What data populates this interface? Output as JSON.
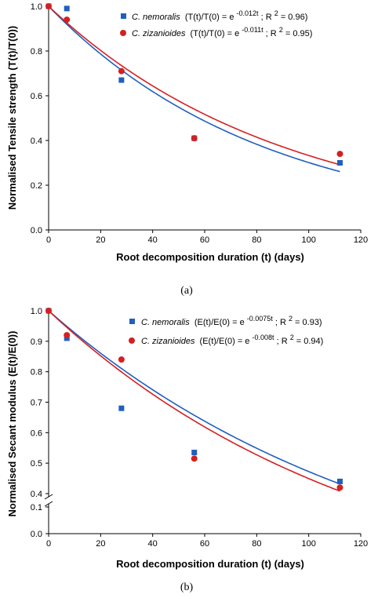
{
  "chart_data": [
    {
      "type": "scatter",
      "panel_label": "(a)",
      "xlabel": "Root decomposition duration (t) (days)",
      "ylabel": "Normalised Tensile strength (T(t)/T(0))",
      "xlim": [
        0,
        120
      ],
      "ylim": [
        0,
        1.0
      ],
      "xticks": [
        "0",
        "20",
        "40",
        "60",
        "80",
        "100",
        "120"
      ],
      "yticks": [
        "0.0",
        "0.2",
        "0.4",
        "0.6",
        "0.8",
        "1.0"
      ],
      "legend_position": "top-right",
      "series": [
        {
          "name": "C. nemoralis",
          "legend_rest": "(T(t)/T(0) = e",
          "legend_exp": "-0.012t",
          "legend_tail": "; R",
          "legend_tail2": " = 0.96)",
          "marker": "square",
          "color": "#1f5fbf",
          "x": [
            0,
            7,
            28,
            56,
            112
          ],
          "y": [
            1.0,
            0.99,
            0.67,
            0.41,
            0.3
          ],
          "fit_k": 0.012
        },
        {
          "name": "C. zizanioides",
          "legend_rest": "(T(t)/T(0) = e",
          "legend_exp": "-0.011t",
          "legend_tail": "; R",
          "legend_tail2": " = 0.95)",
          "marker": "circle",
          "color": "#d42020",
          "x": [
            0,
            7,
            28,
            56,
            112
          ],
          "y": [
            1.0,
            0.94,
            0.71,
            0.41,
            0.34
          ],
          "fit_k": 0.011
        }
      ]
    },
    {
      "type": "scatter",
      "panel_label": "(b)",
      "xlabel": "Root decomposition duration (t) (days)",
      "ylabel": "Normalised Secant modulus (E(t)/E(0))",
      "xlim": [
        0,
        120
      ],
      "ylim": [
        0,
        1.0
      ],
      "axis_break": "between 0.1 and 0.4",
      "xticks": [
        "0",
        "20",
        "40",
        "60",
        "80",
        "100",
        "120"
      ],
      "yticks": [
        "0.0",
        "0.1",
        "0.4",
        "0.5",
        "0.6",
        "0.7",
        "0.8",
        "0.9",
        "1.0"
      ],
      "legend_position": "top-right",
      "series": [
        {
          "name": "C. nemoralis",
          "legend_rest": "(E(t)/E(0) = e",
          "legend_exp": "-0.0075t",
          "legend_tail": "; R",
          "legend_tail2": " = 0.93)",
          "marker": "square",
          "color": "#1f5fbf",
          "x": [
            0,
            7,
            28,
            56,
            112
          ],
          "y": [
            1.0,
            0.91,
            0.68,
            0.535,
            0.44
          ],
          "fit_k": 0.0075
        },
        {
          "name": "C. zizanioides",
          "legend_rest": "(E(t)/E(0) = e",
          "legend_exp": "-0.008t",
          "legend_tail": "; R",
          "legend_tail2": " = 0.94)",
          "marker": "circle",
          "color": "#d42020",
          "x": [
            0,
            7,
            28,
            56,
            112
          ],
          "y": [
            1.0,
            0.92,
            0.84,
            0.515,
            0.42
          ],
          "fit_k": 0.008
        }
      ]
    }
  ]
}
